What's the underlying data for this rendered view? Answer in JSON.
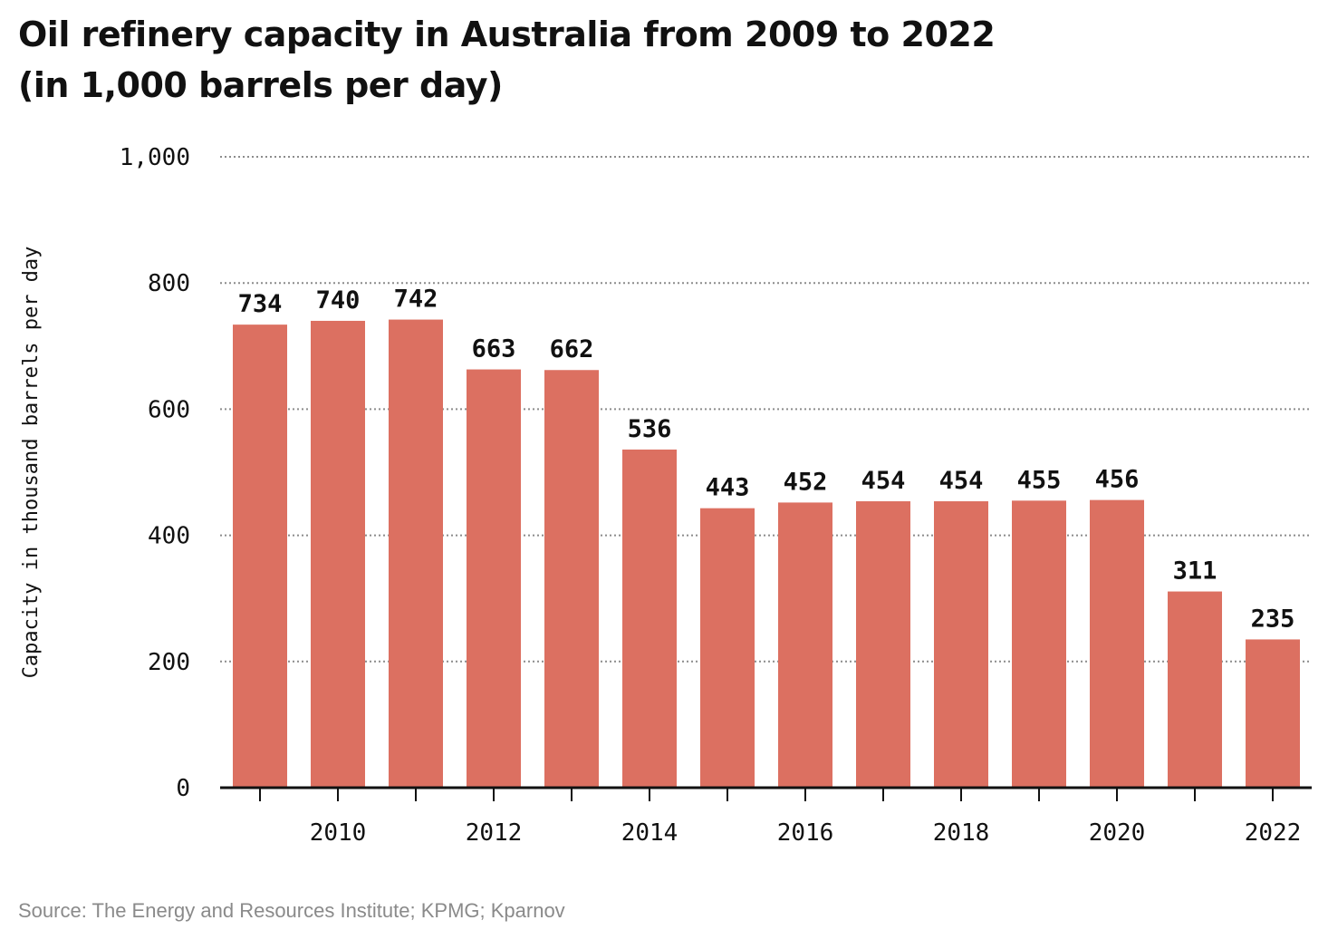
{
  "title_line1": "Oil refinery capacity in Australia from 2009 to 2022",
  "title_line2": "(in 1,000 barrels per day)",
  "source": "Source: The Energy and Resources Institute; KPMG; Kparnov",
  "colors": {
    "bar": "#dc7061",
    "grid": "#8c8c8c",
    "axis": "#111111"
  },
  "chart_data": {
    "type": "bar",
    "categories": [
      "2009",
      "2010",
      "2011",
      "2012",
      "2013",
      "2014",
      "2015",
      "2016",
      "2017",
      "2018",
      "2019",
      "2020",
      "2021",
      "2022"
    ],
    "values": [
      734,
      740,
      742,
      663,
      662,
      536,
      443,
      452,
      454,
      454,
      455,
      456,
      311,
      235
    ],
    "data_labels": [
      "734",
      "740",
      "742",
      "663",
      "662",
      "536",
      "443",
      "452",
      "454",
      "454",
      "455",
      "456",
      "311",
      "235"
    ],
    "ylabel": "Capacity in thousand barrels per day",
    "xlabel": "",
    "ylim": [
      0,
      1000
    ],
    "yticks": [
      0,
      200,
      400,
      600,
      800,
      1000
    ],
    "ytick_labels": [
      "0",
      "200",
      "400",
      "600",
      "800",
      "1,000"
    ],
    "xtick_labels": [
      "2010",
      "2012",
      "2014",
      "2016",
      "2018",
      "2020",
      "2022"
    ],
    "grid": true,
    "grid_style": "dotted horizontal"
  }
}
